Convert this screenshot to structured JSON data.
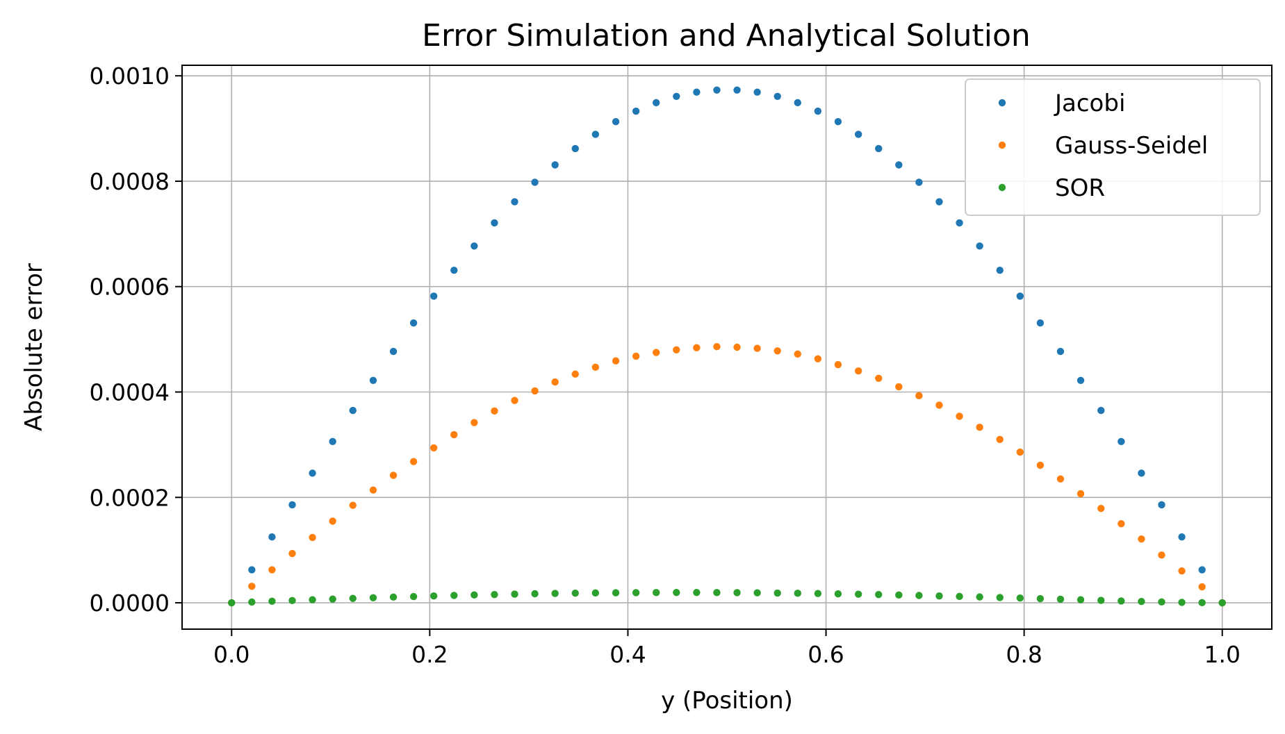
{
  "chart_data": {
    "type": "scatter",
    "title": "Error Simulation and Analytical Solution",
    "xlabel": "y (Position)",
    "ylabel": "Absolute error",
    "xlim": [
      -0.05,
      1.05
    ],
    "ylim": [
      -5e-05,
      0.00102
    ],
    "xticks": [
      0.0,
      0.2,
      0.4,
      0.6,
      0.8,
      1.0
    ],
    "xtick_labels": [
      "0.0",
      "0.2",
      "0.4",
      "0.6",
      "0.8",
      "1.0"
    ],
    "yticks": [
      0.0,
      0.0002,
      0.0004,
      0.0006,
      0.0008,
      0.001
    ],
    "ytick_labels": [
      "0.0000",
      "0.0002",
      "0.0004",
      "0.0006",
      "0.0008",
      "0.0010"
    ],
    "grid": true,
    "legend_position": "top-right",
    "x": [
      0.0,
      0.0204,
      0.0408,
      0.0612,
      0.0816,
      0.102,
      0.1224,
      0.1429,
      0.1633,
      0.1837,
      0.2041,
      0.2245,
      0.2449,
      0.2653,
      0.2857,
      0.3061,
      0.3265,
      0.3469,
      0.3673,
      0.3878,
      0.4082,
      0.4286,
      0.449,
      0.4694,
      0.4898,
      0.5102,
      0.5306,
      0.551,
      0.5714,
      0.5918,
      0.6122,
      0.6327,
      0.6531,
      0.6735,
      0.6939,
      0.7143,
      0.7347,
      0.7551,
      0.7755,
      0.7959,
      0.8163,
      0.8367,
      0.8571,
      0.8776,
      0.898,
      0.9184,
      0.9388,
      0.9592,
      0.9796,
      1.0
    ],
    "series": [
      {
        "name": "Jacobi",
        "color": "#1f77b4",
        "values": [
          0.0,
          6.26e-05,
          0.000125,
          0.000186,
          0.000246,
          0.000306,
          0.000365,
          0.000422,
          0.000477,
          0.000531,
          0.000582,
          0.000631,
          0.000677,
          0.000721,
          0.000761,
          0.000798,
          0.000831,
          0.000862,
          0.000889,
          0.000913,
          0.000933,
          0.000949,
          0.000961,
          0.000969,
          0.000973,
          0.000973,
          0.000969,
          0.000961,
          0.000949,
          0.000933,
          0.000913,
          0.000889,
          0.000862,
          0.000831,
          0.000798,
          0.000761,
          0.000721,
          0.000677,
          0.000631,
          0.000582,
          0.000531,
          0.000477,
          0.000422,
          0.000365,
          0.000306,
          0.000246,
          0.000186,
          0.000125,
          6.26e-05,
          0.0
        ]
      },
      {
        "name": "Gauss-Seidel",
        "color": "#ff7f0e",
        "values": [
          0.0,
          3.13e-05,
          6.26e-05,
          9.35e-05,
          0.000124,
          0.000155,
          0.000185,
          0.000214,
          0.000242,
          0.000268,
          0.000294,
          0.000319,
          0.000342,
          0.000364,
          0.000384,
          0.000402,
          0.000419,
          0.000434,
          0.000447,
          0.000459,
          0.000468,
          0.000475,
          0.00048,
          0.000484,
          0.000486,
          0.000485,
          0.000483,
          0.000478,
          0.000472,
          0.000463,
          0.000452,
          0.00044,
          0.000426,
          0.00041,
          0.000393,
          0.000375,
          0.000354,
          0.000333,
          0.00031,
          0.000286,
          0.000261,
          0.000235,
          0.000207,
          0.000179,
          0.00015,
          0.000121,
          9.06e-05,
          6.05e-05,
          3.03e-05,
          0.0
        ]
      },
      {
        "name": "SOR",
        "color": "#2ca02c",
        "values": [
          0.0,
          1.4e-06,
          2.9e-06,
          4.3e-06,
          5.7e-06,
          7e-06,
          8.3e-06,
          9.6e-06,
          1.08e-05,
          1.19e-05,
          1.3e-05,
          1.4e-05,
          1.49e-05,
          1.57e-05,
          1.65e-05,
          1.72e-05,
          1.78e-05,
          1.83e-05,
          1.87e-05,
          1.9e-05,
          1.93e-05,
          1.94e-05,
          1.95e-05,
          1.95e-05,
          1.94e-05,
          1.92e-05,
          1.89e-05,
          1.85e-05,
          1.81e-05,
          1.76e-05,
          1.7e-05,
          1.63e-05,
          1.56e-05,
          1.48e-05,
          1.39e-05,
          1.3e-05,
          1.21e-05,
          1.11e-05,
          1.01e-05,
          9e-06,
          7.9e-06,
          6.8e-06,
          5.7e-06,
          4.6e-06,
          3.5e-06,
          2.5e-06,
          1.6e-06,
          8e-07,
          3e-07,
          0.0
        ]
      }
    ]
  }
}
